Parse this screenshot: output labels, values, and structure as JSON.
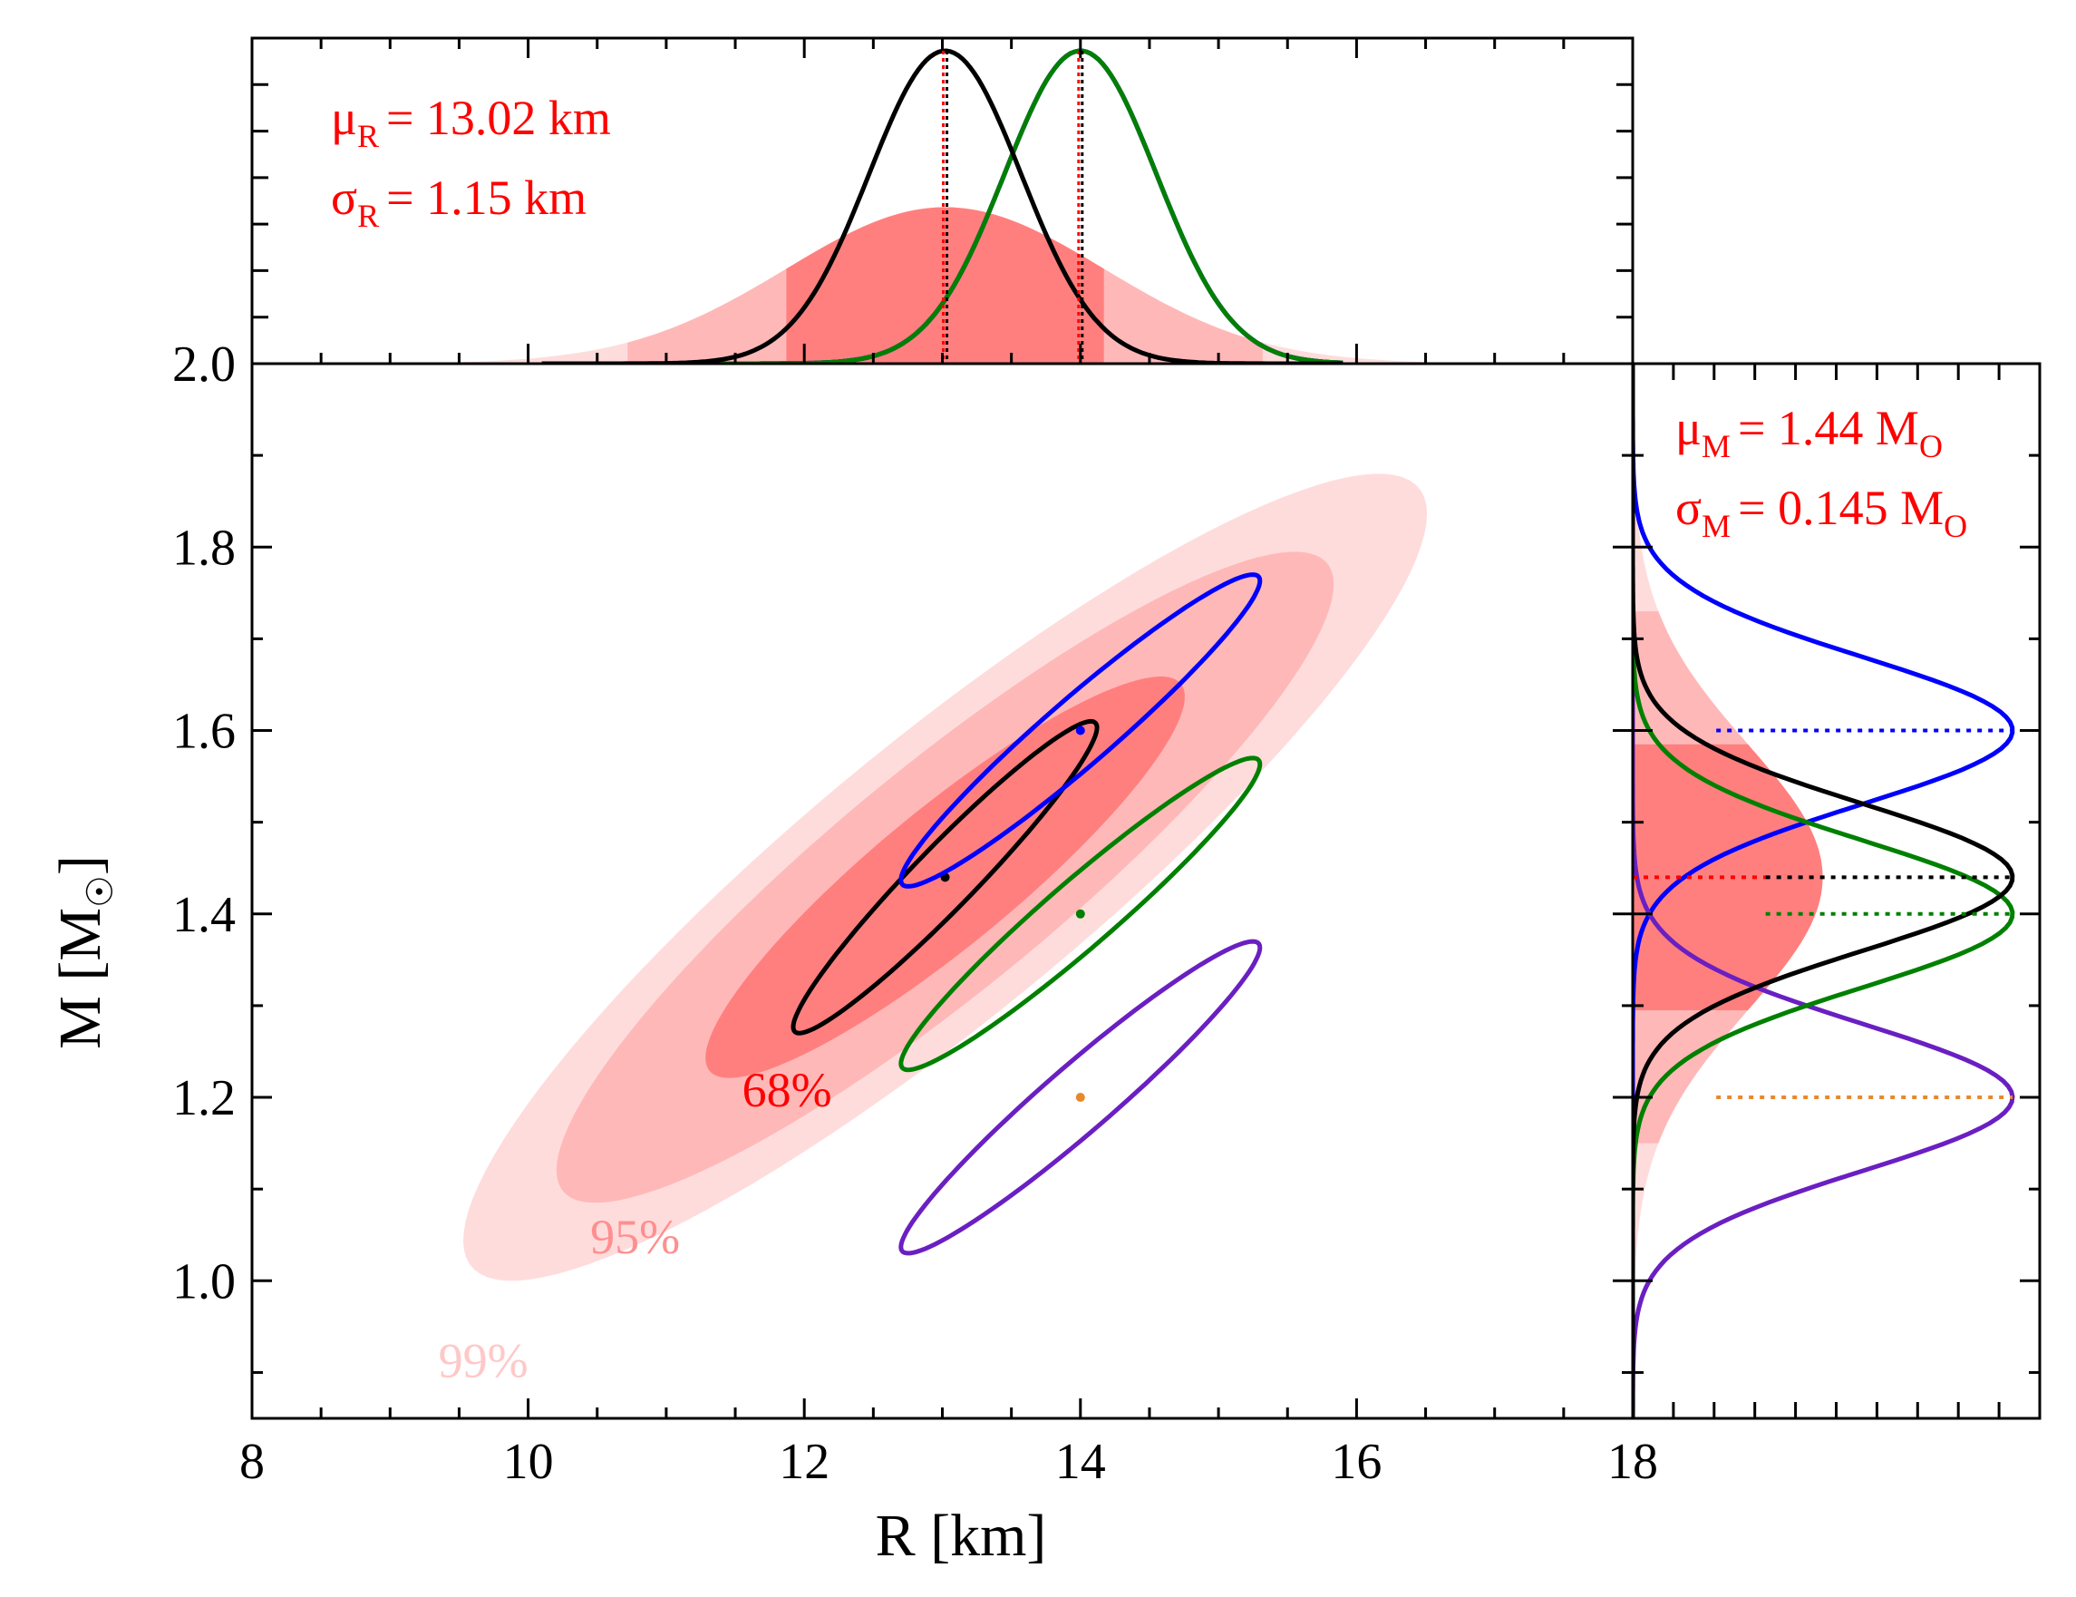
{
  "chart_data": {
    "type": "scatter",
    "xlabel_main": "R [km]",
    "ylabel_main": "M [M",
    "ylabel_suffix": "]",
    "ylabel_sun_symbol": "☉",
    "xlim": [
      8,
      18
    ],
    "ylim": [
      0.85,
      2.0
    ],
    "x_ticks": [
      "8",
      "10",
      "12",
      "14",
      "16",
      "18"
    ],
    "y_ticks": [
      "1.0",
      "1.2",
      "1.4",
      "1.6",
      "1.8",
      "2.0"
    ],
    "x_tick_values": [
      8,
      10,
      12,
      14,
      16,
      18
    ],
    "y_tick_values": [
      1.0,
      1.2,
      1.4,
      1.6,
      1.8,
      2.0
    ],
    "fit": {
      "mu_R": 13.02,
      "sigma_R": 1.15,
      "mu_M": 1.44,
      "sigma_M": 0.145,
      "correlation": 0.9
    },
    "annotations": {
      "mu_R_sym": "μ",
      "mu_R_sub": "R",
      "mu_R_val": "= 13.02 km",
      "sigma_R_sym": "σ",
      "sigma_R_sub": "R",
      "sigma_R_val": "= 1.15 km",
      "mu_M_sym": "μ",
      "mu_M_sub": "M",
      "mu_M_val": "= 1.44 M",
      "mu_M_unit_sub": "O",
      "sigma_M_sym": "σ",
      "sigma_M_sub": "M",
      "sigma_M_val": "= 0.145 M",
      "sigma_M_unit_sub": "O"
    },
    "confidence_regions": [
      {
        "label": "68%",
        "level": 0.68,
        "color": "#ff7f7f",
        "label_color": "#ff0000",
        "label_at": {
          "R": 11.55,
          "M": 1.19
        }
      },
      {
        "label": "95%",
        "level": 0.95,
        "color": "#ffb8b8",
        "label_color": "#ff8f8f",
        "label_at": {
          "R": 10.45,
          "M": 1.03
        }
      },
      {
        "label": "99%",
        "level": 0.99,
        "color": "#ffdcdc",
        "label_color": "#ffc8c8",
        "label_at": {
          "R": 9.35,
          "M": 0.895
        }
      }
    ],
    "sources": [
      {
        "name": "source-black",
        "color": "#000000",
        "R": 13.02,
        "M": 1.44,
        "sigma_R": 0.55,
        "sigma_M": 0.085,
        "correlation": 0.96,
        "dot_color": "#000000"
      },
      {
        "name": "source-blue",
        "color": "#0000ff",
        "R": 14.0,
        "M": 1.6,
        "sigma_R": 0.65,
        "sigma_M": 0.085,
        "correlation": 0.96,
        "dot_color": "#0000ff"
      },
      {
        "name": "source-green",
        "color": "#008000",
        "R": 14.0,
        "M": 1.4,
        "sigma_R": 0.65,
        "sigma_M": 0.085,
        "correlation": 0.96,
        "dot_color": "#008000"
      },
      {
        "name": "source-purple",
        "color": "#6a1fc2",
        "R": 14.0,
        "M": 1.2,
        "sigma_R": 0.65,
        "sigma_M": 0.085,
        "correlation": 0.96,
        "dot_color": "#e8882c"
      }
    ]
  }
}
